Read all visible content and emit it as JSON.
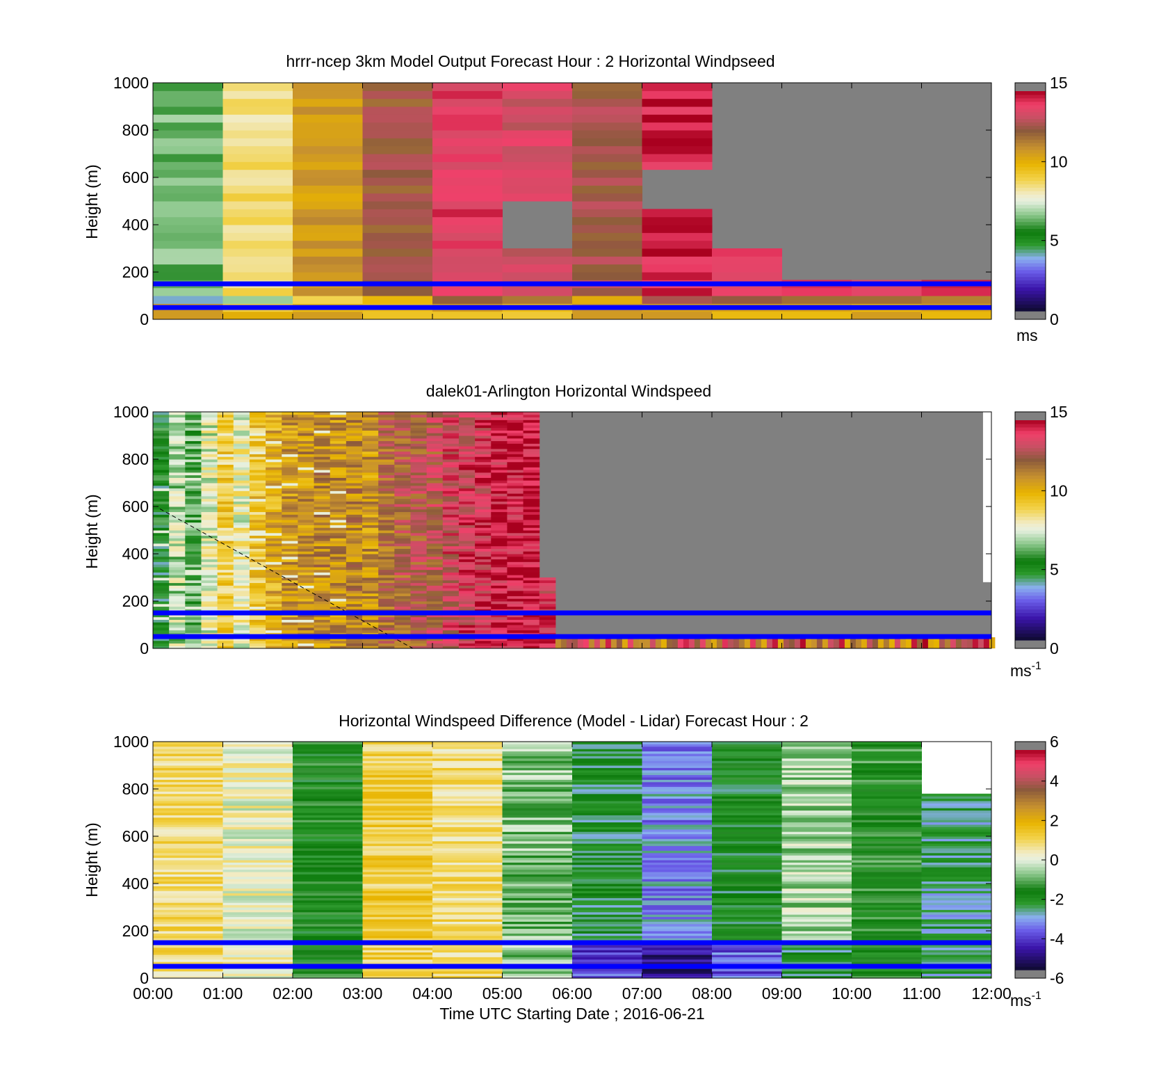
{
  "chart_data": [
    {
      "type": "heatmap",
      "title": "hrrr-ncep 3km Model Output   Forecast Hour : 2 Horizontal Windpseed",
      "ylabel": "Height (m)",
      "xlabel": "",
      "xlim": [
        0,
        12
      ],
      "ylim": [
        0,
        1000
      ],
      "yticks": [
        "0",
        "200",
        "400",
        "600",
        "800",
        "1000"
      ],
      "colorbar": {
        "ticks": [
          "0",
          "5",
          "10",
          "15"
        ],
        "range": [
          0,
          15
        ],
        "unit": "ms",
        "unit_sup": ""
      },
      "reference_lines_height_m": [
        150,
        50
      ],
      "colors": {
        "reference_line": "#0000ff",
        "nodata": "#808080"
      },
      "hourly_speed_ms": [
        6.3,
        8.6,
        10.8,
        12.4,
        14.0,
        13.5,
        12.6,
        14.5,
        14.0,
        14.0,
        14.0,
        14.0
      ],
      "data_top_m": [
        1000,
        1000,
        1000,
        1000,
        1000,
        1000,
        1000,
        1000,
        300,
        150,
        150,
        150
      ],
      "gap_ranges_m": [
        [],
        [],
        [],
        [],
        [],
        [
          [
            300,
            500
          ]
        ],
        [],
        [
          [
            450,
            650
          ]
        ],
        [],
        [],
        [],
        []
      ]
    },
    {
      "type": "heatmap",
      "title": "dalek01-Arlington  Horizontal Windspeed",
      "ylabel": "Height (m)",
      "xlabel": "",
      "xlim": [
        0,
        12
      ],
      "ylim": [
        0,
        1000
      ],
      "yticks": [
        "0",
        "200",
        "400",
        "600",
        "800",
        "1000"
      ],
      "colorbar": {
        "ticks": [
          "0",
          "5",
          "10",
          "15"
        ],
        "range": [
          0,
          15
        ],
        "unit": "ms",
        "unit_sup": "-1"
      },
      "reference_lines_height_m": [
        150,
        50
      ],
      "colors": {
        "reference_line": "#0000ff",
        "nodata": "#808080"
      },
      "lidar_profile_speed_ms": [
        5.0,
        7.0,
        6.0,
        7.5,
        9.2,
        7.8,
        9.5,
        10.3,
        10.8,
        10.9,
        11.2,
        11.0,
        11.3,
        10.9,
        12.0,
        12.4,
        12.6,
        12.8,
        13.5,
        13.8,
        14.0,
        14.4,
        14.6,
        14.8,
        14.0
      ],
      "lidar_data_top_m": [
        1000,
        1000,
        1000,
        1000,
        1000,
        1000,
        1000,
        1000,
        1000,
        1000,
        1000,
        1000,
        1000,
        1000,
        1000,
        1000,
        1000,
        1000,
        1000,
        1000,
        1000,
        1000,
        1000,
        1000,
        300
      ]
    },
    {
      "type": "heatmap",
      "title": "Horizontal Windspeed Difference (Model - Lidar) Forecast Hour : 2",
      "ylabel": "Height (m)",
      "xlabel": "Time UTC  Starting Date ; 2016-06-21",
      "xlim": [
        0,
        12
      ],
      "ylim": [
        0,
        1000
      ],
      "xticks": [
        "00:00",
        "01:00",
        "02:00",
        "03:00",
        "04:00",
        "05:00",
        "06:00",
        "07:00",
        "08:00",
        "09:00",
        "10:00",
        "11:00",
        "12:00"
      ],
      "yticks": [
        "0",
        "200",
        "400",
        "600",
        "800",
        "1000"
      ],
      "colorbar": {
        "ticks": [
          "-6",
          "-4",
          "-2",
          "0",
          "2",
          "4",
          "6"
        ],
        "range": [
          -6,
          6
        ],
        "unit": "ms",
        "unit_sup": "-1"
      },
      "reference_lines_height_m": [
        150,
        50
      ],
      "colors": {
        "reference_line": "#0000ff",
        "nodata": "#ffffff"
      },
      "hourly_difference_ms": [
        0.9,
        0.2,
        -1.8,
        1.3,
        0.9,
        -0.8,
        -2.3,
        -3.4,
        -2.1,
        -0.5,
        -1.6,
        -2.7
      ],
      "data_top_m": [
        1000,
        1000,
        1000,
        1000,
        1000,
        1000,
        1000,
        1000,
        1000,
        1000,
        1000,
        780
      ]
    }
  ]
}
